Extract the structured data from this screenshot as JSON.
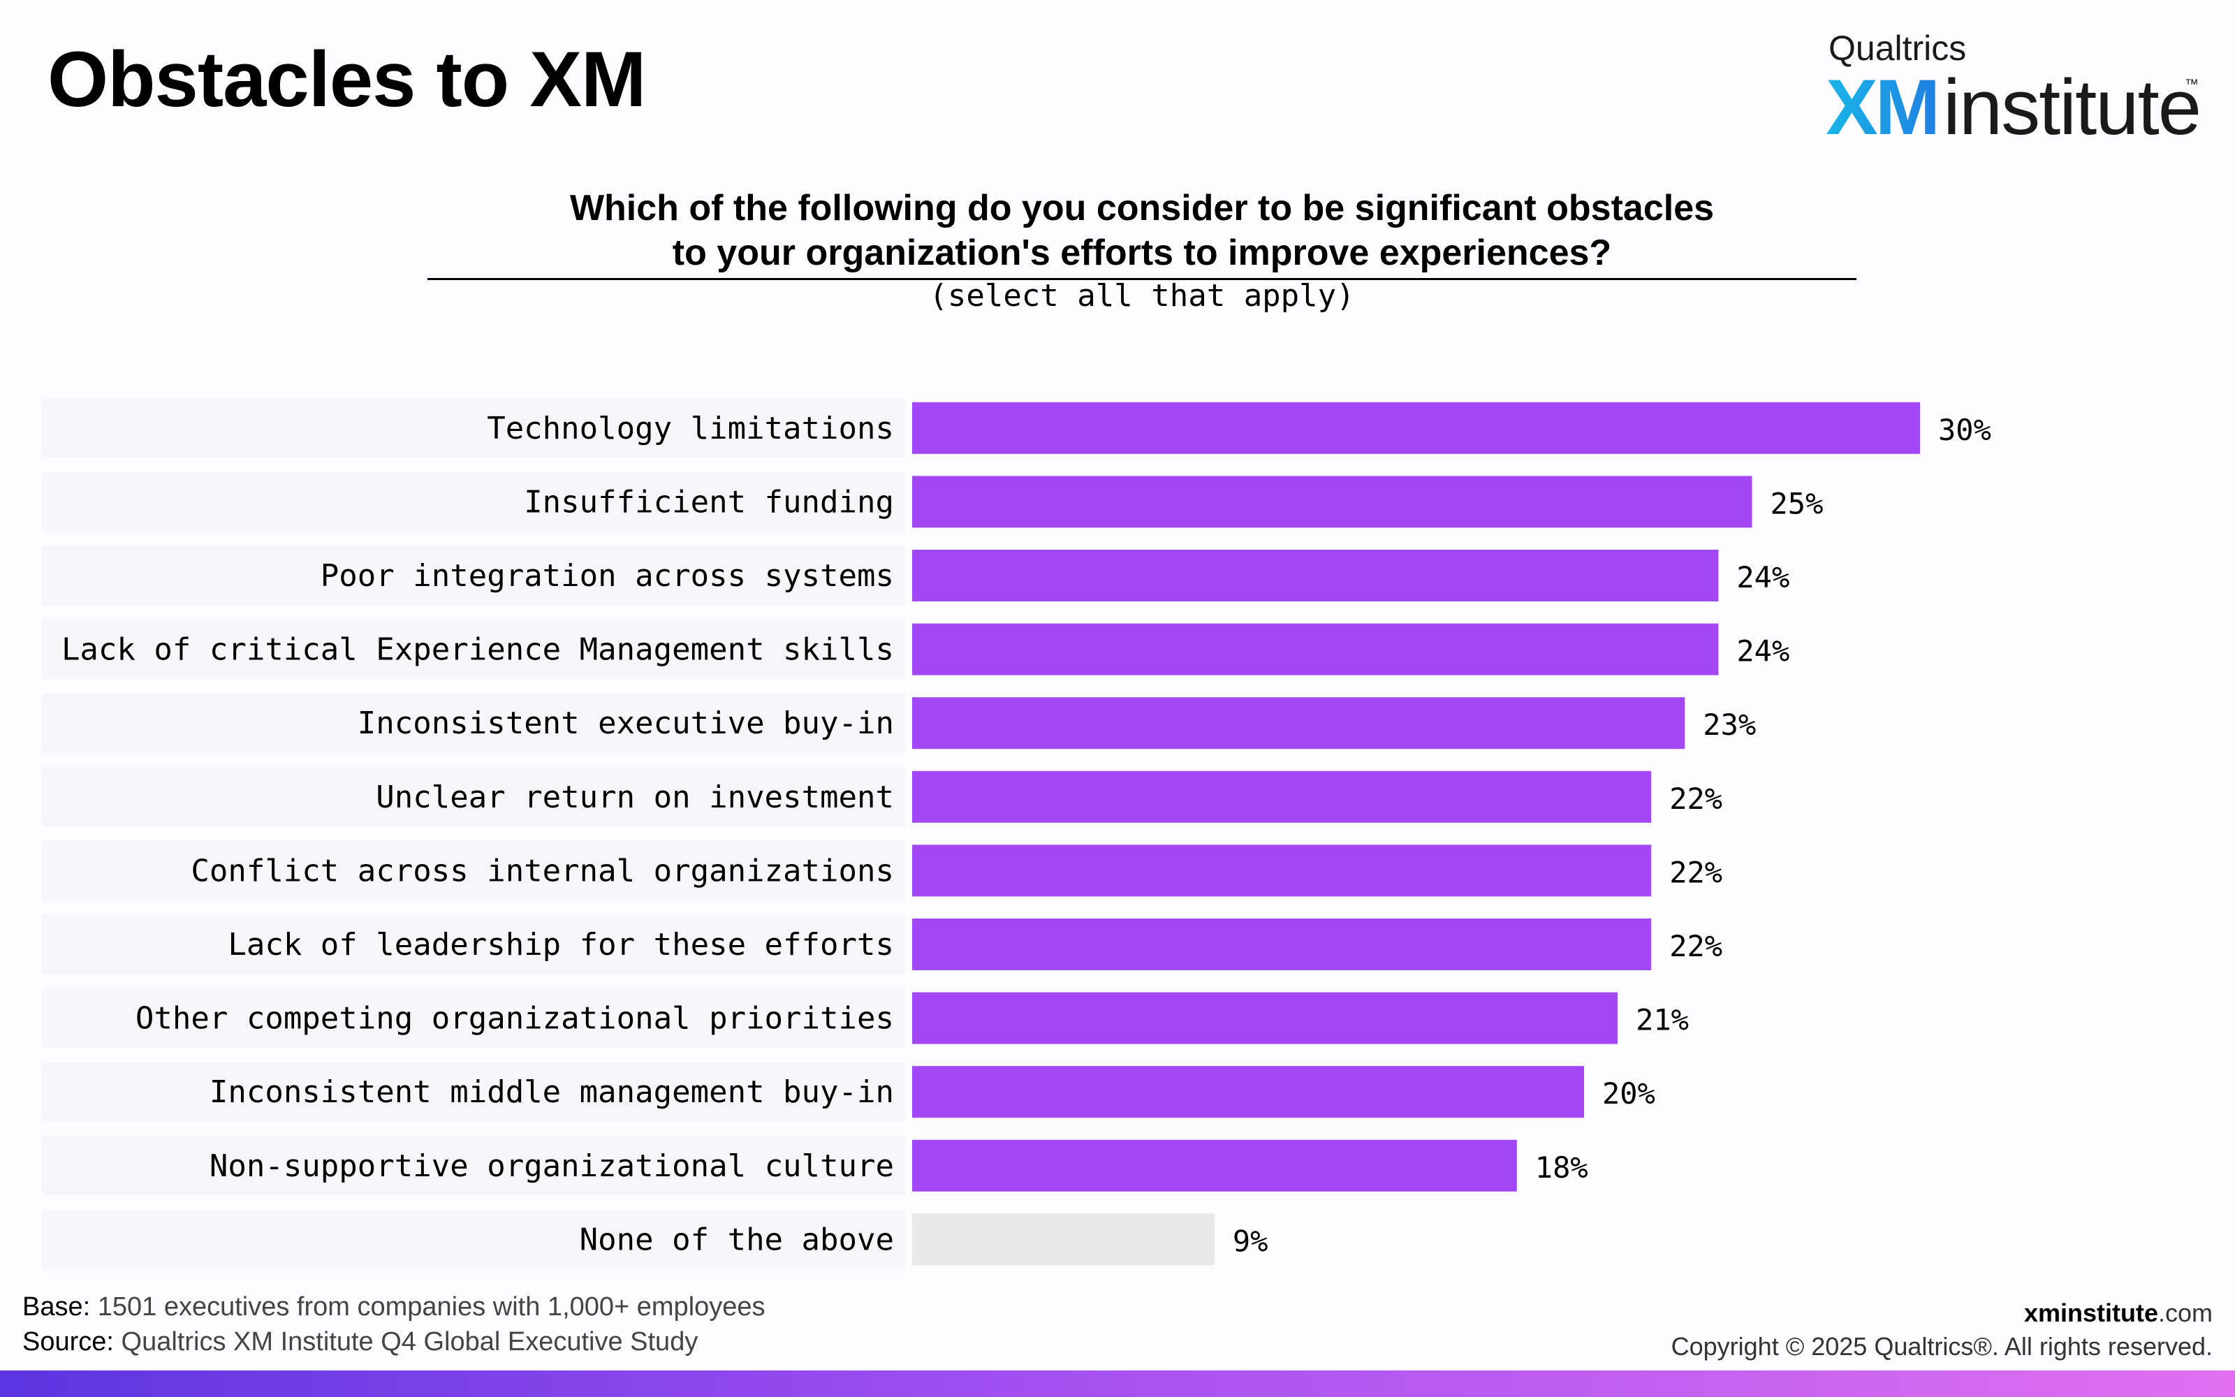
{
  "page": {
    "title": "Obstacles to XM"
  },
  "logo": {
    "brand": "Qualtrics",
    "xm": "XM",
    "institute": "institute",
    "tm": "™"
  },
  "question": {
    "line1": "Which of the following do you consider to be significant obstacles",
    "line2": "to your organization's efforts to improve experiences?",
    "note": "(select all that apply)"
  },
  "colors": {
    "bar": "#a347f2",
    "bar_none": "#e8e8e8",
    "row_background": "#f6f6f9",
    "accent_gradient": [
      "#5b35e0",
      "#a14ff0",
      "#e070f0"
    ]
  },
  "chart_data": {
    "type": "bar",
    "orientation": "horizontal",
    "categories": [
      "Technology limitations",
      "Insufficient funding",
      "Poor integration across systems",
      "Lack of critical Experience Management skills",
      "Inconsistent executive buy-in",
      "Unclear return on investment",
      "Conflict across internal organizations",
      "Lack of leadership for these efforts",
      "Other competing organizational priorities",
      "Inconsistent middle management buy-in",
      "Non-supportive organizational culture",
      "None of the above"
    ],
    "values": [
      30,
      25,
      24,
      24,
      23,
      22,
      22,
      22,
      21,
      20,
      18,
      9
    ],
    "value_labels": [
      "30%",
      "25%",
      "24%",
      "24%",
      "23%",
      "22%",
      "22%",
      "22%",
      "21%",
      "20%",
      "18%",
      "9%"
    ],
    "unit": "%",
    "highlight_gray": [
      "None of the above"
    ],
    "grid": false,
    "legend": "none"
  },
  "footer": {
    "base_label": "Base:",
    "base_text": " 1501 executives from companies with 1,000+ employees",
    "source_label": "Source:",
    "source_text": " Qualtrics XM Institute Q4 Global Executive Study",
    "site_bold": "xminstitute",
    "site_suffix": ".com",
    "copyright": "Copyright © 2025 Qualtrics®. All rights reserved."
  }
}
